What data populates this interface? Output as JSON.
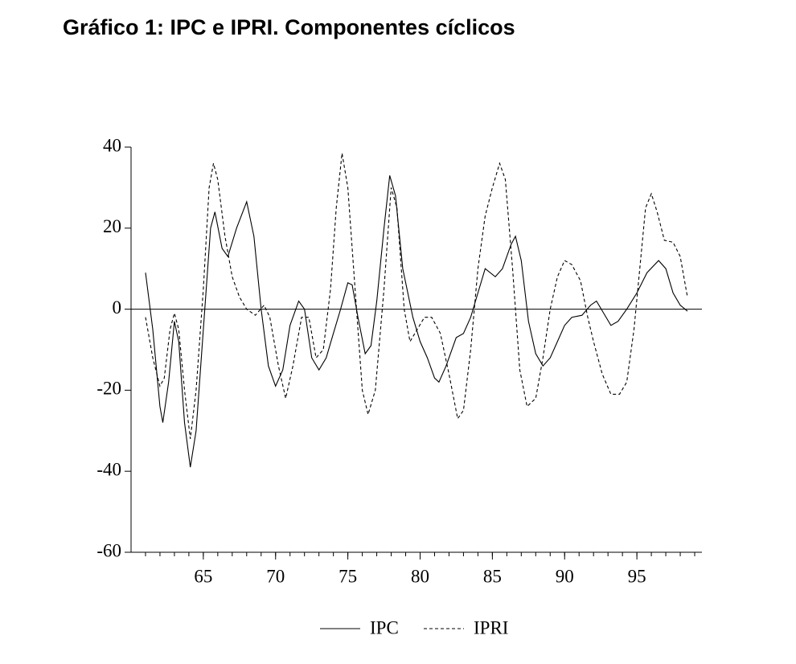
{
  "chart_data": {
    "type": "line",
    "title": "Gráfico 1: IPC e IPRI. Componentes cíclicos",
    "xlim": [
      60,
      99.5
    ],
    "xticks": [
      65,
      70,
      75,
      80,
      85,
      90,
      95
    ],
    "xminorticks": [
      61,
      62,
      63,
      64,
      65,
      66,
      67,
      68,
      69,
      70,
      71,
      72,
      73,
      74,
      75,
      76,
      77,
      78,
      79,
      80,
      81,
      82,
      83,
      84,
      85,
      86,
      87,
      88,
      89,
      90,
      91,
      92,
      93,
      94,
      95,
      96,
      97,
      98,
      99
    ],
    "ylim": [
      -60,
      40
    ],
    "yticks": [
      -60,
      -40,
      -20,
      0,
      20,
      40
    ],
    "hline": 0,
    "series": [
      {
        "name": "IPC",
        "color": "#000000",
        "dash": "none",
        "x": [
          61,
          61.5,
          62,
          62.2,
          62.6,
          63,
          63.3,
          63.7,
          64.1,
          64.5,
          65,
          65.5,
          65.8,
          66.3,
          66.7,
          67.3,
          68,
          68.5,
          69,
          69.5,
          70,
          70.5,
          71,
          71.6,
          72,
          72.5,
          73,
          73.5,
          74,
          74.5,
          75,
          75.3,
          75.7,
          76.2,
          76.6,
          77,
          77.5,
          77.9,
          78.3,
          78.8,
          79.5,
          80,
          80.5,
          81,
          81.3,
          81.8,
          82.5,
          83,
          83.5,
          84,
          84.5,
          85.2,
          85.7,
          86.3,
          86.6,
          87,
          87.5,
          88,
          88.5,
          89,
          89.5,
          90,
          90.5,
          91.2,
          91.8,
          92.2,
          92.7,
          93.2,
          93.7,
          94.3,
          95,
          95.7,
          96.5,
          97,
          97.5,
          98,
          98.5
        ],
        "values": [
          9,
          -5,
          -24,
          -28,
          -18,
          -3,
          -8,
          -28,
          -39,
          -30,
          -5,
          20,
          24,
          15,
          13,
          20,
          26.5,
          18,
          0,
          -14,
          -19,
          -15,
          -4,
          2,
          0,
          -12,
          -15,
          -12,
          -6,
          0,
          6.5,
          6,
          -2,
          -11,
          -9,
          2,
          20,
          33,
          28,
          10,
          -2,
          -8,
          -12,
          -17,
          -18,
          -14,
          -7,
          -6,
          -2,
          4,
          10,
          8,
          10,
          16,
          18,
          12,
          -3,
          -11,
          -14,
          -12,
          -8,
          -4,
          -2,
          -1.5,
          1,
          2,
          -1,
          -4,
          -3,
          0,
          4,
          9,
          12,
          10,
          4,
          1,
          -0.5
        ]
      },
      {
        "name": "IPRI",
        "color": "#000000",
        "dash": "4,3",
        "x": [
          61,
          61.5,
          62,
          62.3,
          62.7,
          63,
          63.3,
          63.7,
          64.1,
          64.5,
          65,
          65.4,
          65.7,
          66,
          66.5,
          67,
          67.5,
          68,
          68.6,
          69.2,
          69.6,
          70.2,
          70.7,
          71.2,
          71.8,
          72.3,
          72.8,
          73.3,
          73.8,
          74.2,
          74.6,
          75,
          75.5,
          76,
          76.4,
          76.9,
          77.5,
          78,
          78.4,
          78.9,
          79.3,
          79.8,
          80.3,
          80.8,
          81.4,
          82,
          82.6,
          83,
          83.5,
          84,
          84.5,
          85,
          85.5,
          85.9,
          86.4,
          86.9,
          87.4,
          88,
          88.5,
          89,
          89.5,
          90,
          90.5,
          91.1,
          91.6,
          92,
          92.6,
          93.2,
          93.8,
          94.3,
          94.8,
          95.2,
          95.6,
          96,
          96.4,
          96.9,
          97.5,
          98,
          98.5
        ],
        "values": [
          -2,
          -12,
          -19,
          -17,
          -5,
          -1,
          -5,
          -20,
          -32,
          -20,
          5,
          30,
          36,
          32,
          18,
          8,
          3,
          0,
          -1.5,
          1,
          -2,
          -14,
          -22,
          -14,
          -2,
          -2,
          -12,
          -10,
          5,
          25,
          38.5,
          30,
          5,
          -20,
          -26,
          -20,
          5,
          30,
          25,
          0,
          -8,
          -5,
          -2,
          -2,
          -6,
          -16,
          -27,
          -25,
          -10,
          10,
          23,
          30,
          36,
          32,
          10,
          -15,
          -24,
          -22,
          -12,
          0,
          8,
          12,
          11,
          7,
          -2,
          -8,
          -16,
          -21,
          -21,
          -18,
          -5,
          10,
          25,
          28.5,
          24,
          17,
          16.5,
          13,
          3
        ]
      }
    ]
  }
}
